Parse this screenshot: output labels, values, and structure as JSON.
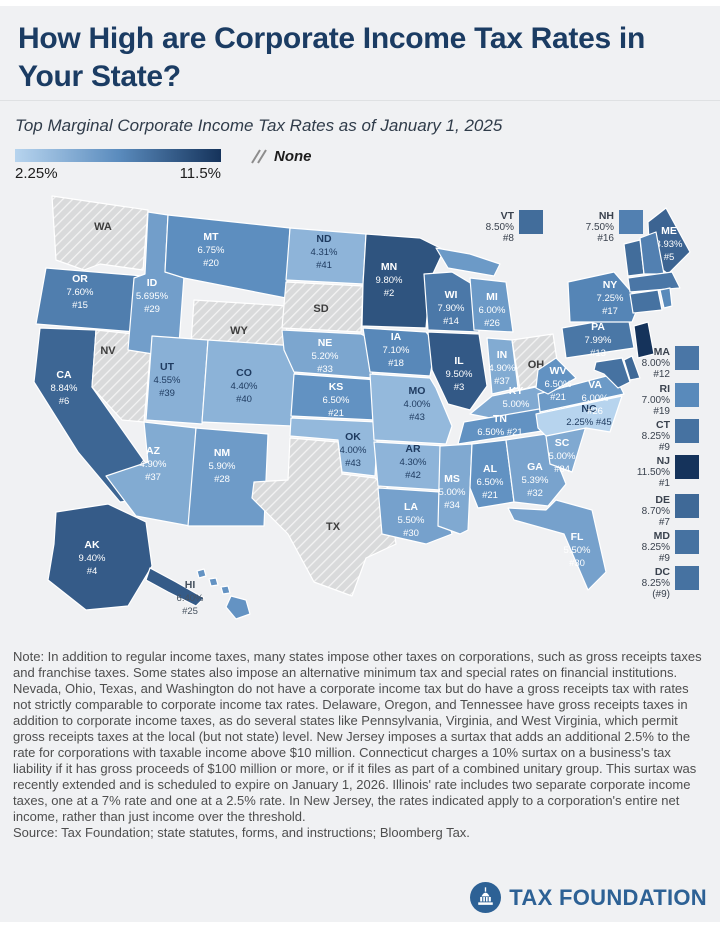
{
  "header": {
    "title": "How High are Corporate Income Tax Rates in Your State?",
    "subtitle": "Top Marginal Corporate Income Tax Rates as of January 1, 2025"
  },
  "legend": {
    "min_label": "2.25%",
    "max_label": "11.5%",
    "none_label": "None",
    "colors": {
      "start": "#b7d4ee",
      "mid": "#5b8cbe",
      "end": "#15335b"
    }
  },
  "chart_data": {
    "type": "choropleth-map",
    "title": "Top Marginal Corporate Income Tax Rates as of January 1, 2025",
    "unit": "percent",
    "range": {
      "min": 2.25,
      "max": 11.5
    },
    "no_tax_states": [
      "WA",
      "NV",
      "WY",
      "SD",
      "TX",
      "OH"
    ],
    "states": [
      {
        "abbr": "WA",
        "rate": null,
        "rank": null,
        "none": true
      },
      {
        "abbr": "OR",
        "rate": "7.60%",
        "rank": "#15"
      },
      {
        "abbr": "CA",
        "rate": "8.84%",
        "rank": "#6"
      },
      {
        "abbr": "NV",
        "rate": null,
        "rank": null,
        "none": true
      },
      {
        "abbr": "ID",
        "rate": "5.695%",
        "rank": "#29"
      },
      {
        "abbr": "MT",
        "rate": "6.75%",
        "rank": "#20"
      },
      {
        "abbr": "WY",
        "rate": null,
        "rank": null,
        "none": true
      },
      {
        "abbr": "UT",
        "rate": "4.55%",
        "rank": "#39"
      },
      {
        "abbr": "CO",
        "rate": "4.40%",
        "rank": "#40"
      },
      {
        "abbr": "AZ",
        "rate": "4.90%",
        "rank": "#37"
      },
      {
        "abbr": "NM",
        "rate": "5.90%",
        "rank": "#28"
      },
      {
        "abbr": "ND",
        "rate": "4.31%",
        "rank": "#41"
      },
      {
        "abbr": "SD",
        "rate": null,
        "rank": null,
        "none": true
      },
      {
        "abbr": "NE",
        "rate": "5.20%",
        "rank": "#33"
      },
      {
        "abbr": "KS",
        "rate": "6.50%",
        "rank": "#21"
      },
      {
        "abbr": "OK",
        "rate": "4.00%",
        "rank": "#43"
      },
      {
        "abbr": "TX",
        "rate": null,
        "rank": null,
        "none": true
      },
      {
        "abbr": "MN",
        "rate": "9.80%",
        "rank": "#2"
      },
      {
        "abbr": "IA",
        "rate": "7.10%",
        "rank": "#18"
      },
      {
        "abbr": "MO",
        "rate": "4.00%",
        "rank": "#43"
      },
      {
        "abbr": "AR",
        "rate": "4.30%",
        "rank": "#42"
      },
      {
        "abbr": "LA",
        "rate": "5.50%",
        "rank": "#30"
      },
      {
        "abbr": "WI",
        "rate": "7.90%",
        "rank": "#14"
      },
      {
        "abbr": "IL",
        "rate": "9.50%",
        "rank": "#3"
      },
      {
        "abbr": "MS",
        "rate": "5.00%",
        "rank": "#34"
      },
      {
        "abbr": "MI",
        "rate": "6.00%",
        "rank": "#26"
      },
      {
        "abbr": "IN",
        "rate": "4.90%",
        "rank": "#37"
      },
      {
        "abbr": "OH",
        "rate": null,
        "rank": null,
        "none": true
      },
      {
        "abbr": "KY",
        "rate": "5.00%",
        "rank": "#34"
      },
      {
        "abbr": "TN",
        "rate": "6.50%",
        "rank": "#21"
      },
      {
        "abbr": "AL",
        "rate": "6.50%",
        "rank": "#21"
      },
      {
        "abbr": "GA",
        "rate": "5.39%",
        "rank": "#32"
      },
      {
        "abbr": "SC",
        "rate": "5.00%",
        "rank": "#34"
      },
      {
        "abbr": "NC",
        "rate": "2.25%",
        "rank": "#45"
      },
      {
        "abbr": "VA",
        "rate": "6.00%",
        "rank": "#26"
      },
      {
        "abbr": "WV",
        "rate": "6.50%",
        "rank": "#21"
      },
      {
        "abbr": "PA",
        "rate": "7.99%",
        "rank": "#13"
      },
      {
        "abbr": "NY",
        "rate": "7.25%",
        "rank": "#17"
      },
      {
        "abbr": "ME",
        "rate": "8.93%",
        "rank": "#5"
      },
      {
        "abbr": "VT",
        "rate": "8.50%",
        "rank": "#8"
      },
      {
        "abbr": "NH",
        "rate": "7.50%",
        "rank": "#16"
      },
      {
        "abbr": "MA",
        "rate": "8.00%",
        "rank": "#12"
      },
      {
        "abbr": "RI",
        "rate": "7.00%",
        "rank": "#19"
      },
      {
        "abbr": "CT",
        "rate": "8.25%",
        "rank": "#9"
      },
      {
        "abbr": "NJ",
        "rate": "11.50%",
        "rank": "#1"
      },
      {
        "abbr": "DE",
        "rate": "8.70%",
        "rank": "#7"
      },
      {
        "abbr": "MD",
        "rate": "8.25%",
        "rank": "#9"
      },
      {
        "abbr": "DC",
        "rate": "8.25%",
        "rank": "(#9)"
      },
      {
        "abbr": "FL",
        "rate": "5.50%",
        "rank": "#30"
      },
      {
        "abbr": "AK",
        "rate": "9.40%",
        "rank": "#4"
      },
      {
        "abbr": "HI",
        "rate": "6.40%",
        "rank": "#25"
      }
    ]
  },
  "footer": {
    "note": "Note: In addition to regular income taxes, many states impose other taxes on corporations, such as gross receipts taxes and franchise taxes. Some states also impose an alternative minimum tax and special rates on financial institutions. Nevada, Ohio, Texas, and Washington do not have a corporate income tax but do have a gross receipts tax with rates not strictly comparable to corporate income tax rates. Delaware, Oregon, and Tennessee have gross receipts taxes in addition to corporate income taxes, as do several states like Pennsylvania, Virginia, and West Virginia, which permit gross receipts taxes at the local (but not state) level. New Jersey imposes a surtax that adds an additional 2.5% to the rate for corporations with taxable income above $10 million. Connecticut charges a 10% surtax on a business's tax liability if it has gross proceeds of $100 million or more, or if it files as part of a combined unitary group. This surtax was recently extended and is scheduled to expire on January 1, 2026. Illinois' rate includes two separate corporate income taxes, one at a 7% rate and one at a 2.5% rate. In New Jersey, the rates indicated apply to a corporation's entire net income, rather than just income over the threshold.",
    "source": "Source: Tax Foundation; state statutes, forms, and instructions; Bloomberg Tax.",
    "logo_text": "TAX FOUNDATION"
  }
}
